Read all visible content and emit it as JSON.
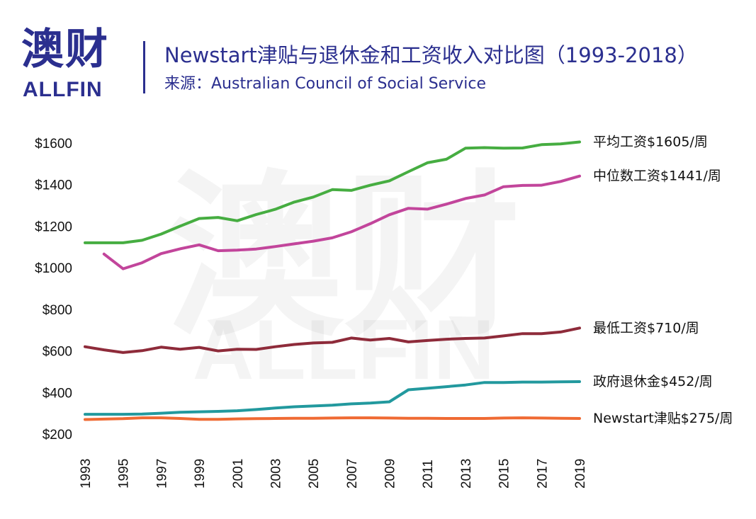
{
  "header": {
    "logo_cn": "澳财",
    "logo_en": "ALLFIN",
    "title": "Newstart津贴与退休金和工资收入对比图（1993-2018）",
    "source": "来源：Australian Council of Social Service"
  },
  "watermark": {
    "cn": "澳财",
    "en": "ALLFIN"
  },
  "colors": {
    "brand": "#2b2f8f",
    "average_wage": "#46ad41",
    "median_wage": "#c2459b",
    "minimum_wage": "#8e2b3a",
    "age_pension": "#22999e",
    "newstart": "#ef6a33"
  },
  "chart_data": {
    "type": "line",
    "xlim": [
      1993,
      2019
    ],
    "ylim": [
      200,
      1600
    ],
    "y_ticks": [
      200,
      400,
      600,
      800,
      1000,
      1200,
      1400,
      1600
    ],
    "y_tick_labels": [
      "$200",
      "$400",
      "$600",
      "$800",
      "$1000",
      "$1200",
      "$1400",
      "$1600"
    ],
    "x_ticks": [
      1993,
      1995,
      1997,
      1999,
      2001,
      2003,
      2005,
      2007,
      2009,
      2011,
      2013,
      2015,
      2017,
      2019
    ],
    "x_tick_labels": [
      "1993",
      "1995",
      "1997",
      "1999",
      "2001",
      "2003",
      "2005",
      "2007",
      "2009",
      "2011",
      "2013",
      "2015",
      "2017",
      "2019"
    ],
    "grid": false,
    "series": [
      {
        "name": "平均工资$1605/周",
        "color_key": "average_wage",
        "x": [
          1993,
          1994,
          1995,
          1996,
          1997,
          1998,
          1999,
          2000,
          2001,
          2002,
          2003,
          2004,
          2005,
          2006,
          2007,
          2008,
          2009,
          2010,
          2011,
          2012,
          2013,
          2014,
          2015,
          2016,
          2017,
          2018,
          2019
        ],
        "values": [
          1120,
          1120,
          1120,
          1132,
          1162,
          1200,
          1237,
          1242,
          1226,
          1256,
          1281,
          1316,
          1340,
          1376,
          1372,
          1397,
          1418,
          1462,
          1505,
          1522,
          1575,
          1578,
          1575,
          1576,
          1592,
          1596,
          1605
        ]
      },
      {
        "name": "中位数工资$1441/周",
        "color_key": "median_wage",
        "x": [
          1994,
          1995,
          1996,
          1997,
          1998,
          1999,
          2000,
          2001,
          2002,
          2003,
          2004,
          2005,
          2006,
          2007,
          2008,
          2009,
          2010,
          2011,
          2012,
          2013,
          2014,
          2015,
          2016,
          2017,
          2018,
          2019
        ],
        "values": [
          1066,
          995,
          1024,
          1068,
          1091,
          1110,
          1082,
          1085,
          1090,
          1102,
          1115,
          1128,
          1144,
          1173,
          1212,
          1255,
          1286,
          1282,
          1306,
          1333,
          1350,
          1390,
          1396,
          1397,
          1415,
          1441
        ]
      },
      {
        "name": "最低工资$710/周",
        "color_key": "minimum_wage",
        "x": [
          1993,
          1994,
          1995,
          1996,
          1997,
          1998,
          1999,
          2000,
          2001,
          2002,
          2003,
          2004,
          2005,
          2006,
          2007,
          2008,
          2009,
          2010,
          2011,
          2012,
          2013,
          2014,
          2015,
          2016,
          2017,
          2018,
          2019
        ],
        "values": [
          620,
          605,
          592,
          601,
          618,
          608,
          617,
          600,
          608,
          607,
          620,
          631,
          638,
          641,
          662,
          652,
          660,
          643,
          650,
          656,
          660,
          662,
          672,
          683,
          683,
          691,
          710
        ]
      },
      {
        "name": "政府退休金$452/周",
        "color_key": "age_pension",
        "x": [
          1993,
          1994,
          1995,
          1996,
          1997,
          1998,
          1999,
          2000,
          2001,
          2002,
          2003,
          2004,
          2005,
          2006,
          2007,
          2008,
          2009,
          2010,
          2011,
          2012,
          2013,
          2014,
          2015,
          2016,
          2017,
          2018,
          2019
        ],
        "values": [
          295,
          295,
          295,
          296,
          300,
          305,
          307,
          309,
          312,
          318,
          325,
          331,
          335,
          339,
          345,
          349,
          355,
          413,
          420,
          428,
          436,
          448,
          448,
          450,
          450,
          451,
          452
        ]
      },
      {
        "name": "Newstart津贴$275/周",
        "color_key": "newstart",
        "x": [
          1993,
          1994,
          1995,
          1996,
          1997,
          1998,
          1999,
          2000,
          2001,
          2002,
          2003,
          2004,
          2005,
          2006,
          2007,
          2008,
          2009,
          2010,
          2011,
          2012,
          2013,
          2014,
          2015,
          2016,
          2017,
          2018,
          2019
        ],
        "values": [
          270,
          272,
          274,
          278,
          278,
          275,
          271,
          271,
          273,
          274,
          275,
          276,
          276,
          277,
          278,
          278,
          277,
          276,
          276,
          275,
          275,
          275,
          277,
          278,
          277,
          276,
          275
        ]
      }
    ]
  }
}
